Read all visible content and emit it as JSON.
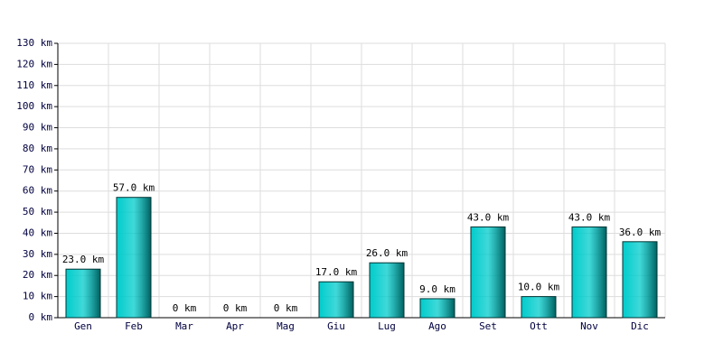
{
  "chart_data": {
    "type": "bar",
    "categories": [
      "Gen",
      "Feb",
      "Mar",
      "Apr",
      "Mag",
      "Giu",
      "Lug",
      "Ago",
      "Set",
      "Ott",
      "Nov",
      "Dic"
    ],
    "values": [
      23,
      57,
      0,
      0,
      0,
      17,
      26,
      9,
      43,
      10,
      43,
      36
    ],
    "value_labels": [
      "23.0 km",
      "57.0 km",
      "0 km",
      "0 km",
      "0 km",
      "17.0 km",
      "26.0 km",
      "9.0 km",
      "43.0 km",
      "10.0 km",
      "43.0 km",
      "36.0 km"
    ],
    "color": "#00cccc",
    "ylim": [
      0,
      130
    ],
    "yticks": [
      {
        "value": 0,
        "label": "0 km"
      },
      {
        "value": 10,
        "label": "10 km"
      },
      {
        "value": 20,
        "label": "20 km"
      },
      {
        "value": 30,
        "label": "30 km"
      },
      {
        "value": 40,
        "label": "40 km"
      },
      {
        "value": 50,
        "label": "50 km"
      },
      {
        "value": 60,
        "label": "60 km"
      },
      {
        "value": 70,
        "label": "70 km"
      },
      {
        "value": 80,
        "label": "80 km"
      },
      {
        "value": 90,
        "label": "90 km"
      },
      {
        "value": 100,
        "label": "100 km"
      },
      {
        "value": 110,
        "label": "110 km"
      },
      {
        "value": 120,
        "label": "120 km"
      },
      {
        "value": 130,
        "label": "130 km"
      }
    ],
    "grid": true
  }
}
